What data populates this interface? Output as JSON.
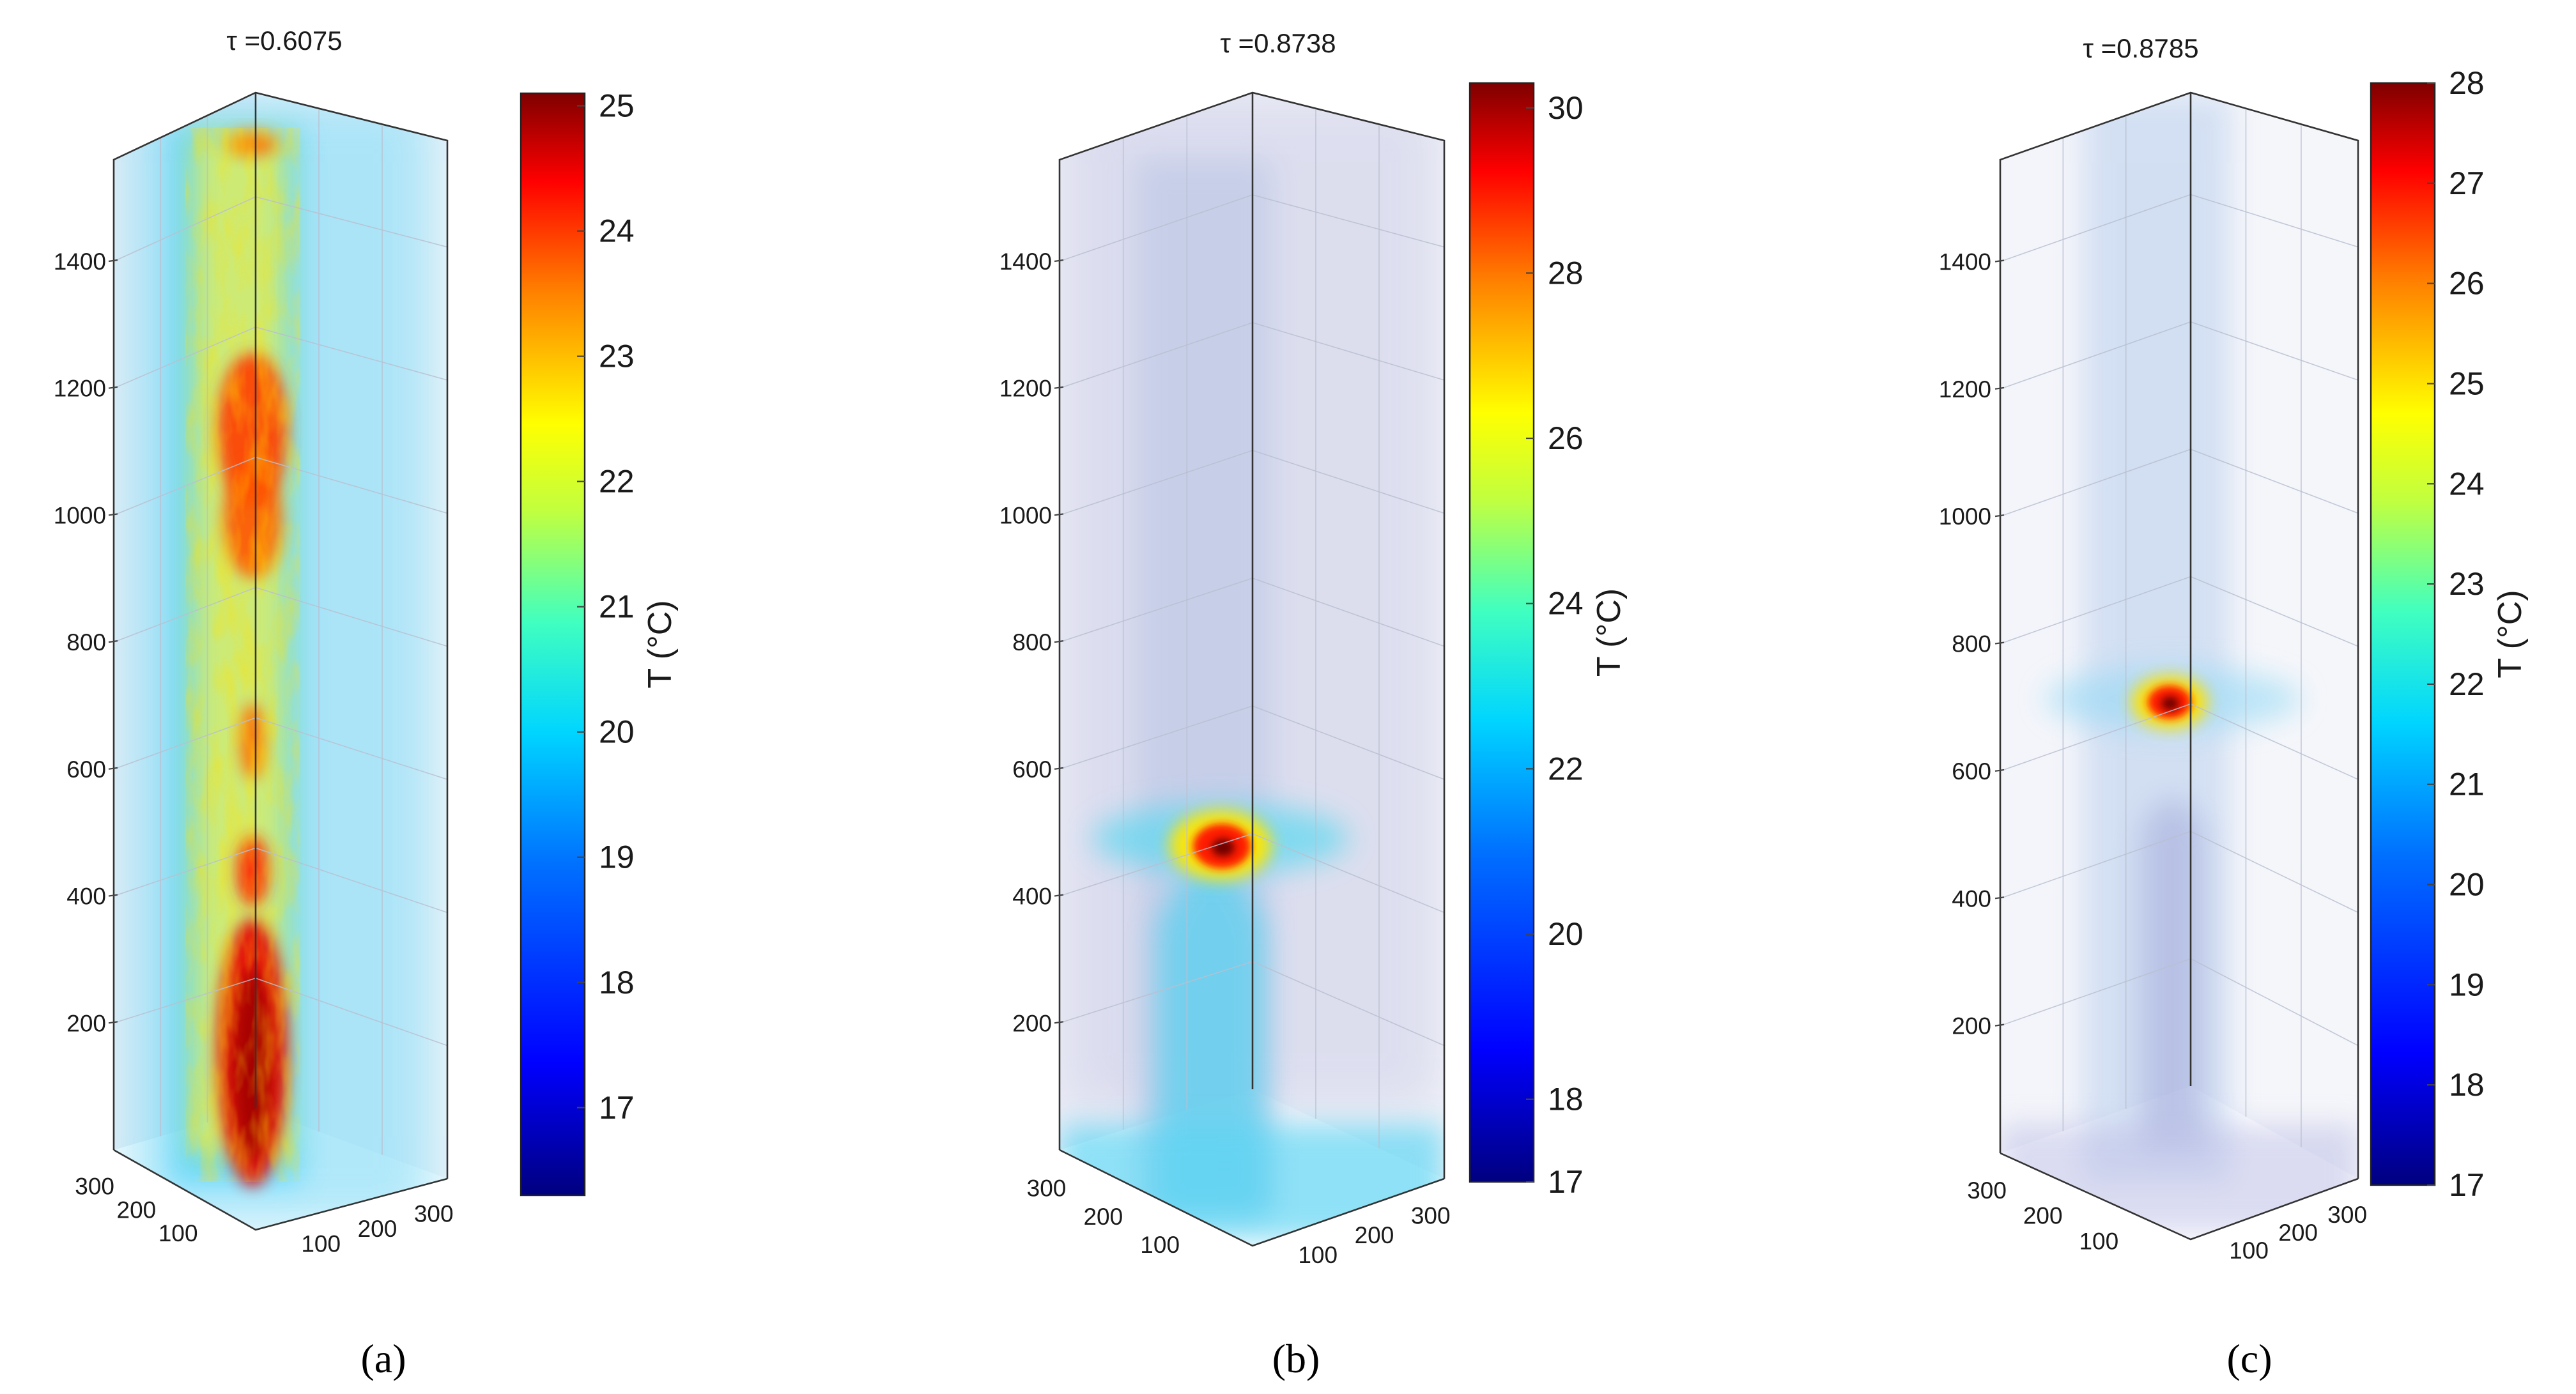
{
  "chart_data": [
    {
      "type": "heatmap",
      "panel_label": "a",
      "caption": "(a)",
      "title": "τ =0.6075",
      "colorbar_label": "T (°C)",
      "colorbar_range": [
        16.3,
        25.1
      ],
      "colorbar_ticks": [
        "17",
        "18",
        "19",
        "20",
        "21",
        "22",
        "23",
        "24",
        "25"
      ],
      "z_axis_ticks": [
        "200",
        "400",
        "600",
        "800",
        "1000",
        "1200",
        "1400"
      ],
      "z_range": [
        0,
        1560
      ],
      "x_axis_ticks": [
        "100",
        "200",
        "300"
      ],
      "y_axis_ticks": [
        "100",
        "200",
        "300"
      ],
      "xy_range": [
        0,
        340
      ],
      "description_points": [
        {
          "z": 100,
          "t": 25.0
        },
        {
          "z": 420,
          "t": 24.0
        },
        {
          "z": 960,
          "t": 24.0
        },
        {
          "z": 1100,
          "t": 24.2
        },
        {
          "z": 1540,
          "t": 23.0
        }
      ]
    },
    {
      "type": "heatmap",
      "panel_label": "b",
      "caption": "(b)",
      "title": "τ =0.8738",
      "colorbar_label": "T (°C)",
      "colorbar_range": [
        17,
        30.3
      ],
      "colorbar_ticks": [
        "18",
        "20",
        "22",
        "24",
        "26",
        "28",
        "30"
      ],
      "extra_ticks": [
        "17"
      ],
      "z_axis_ticks": [
        "200",
        "400",
        "600",
        "800",
        "1000",
        "1200",
        "1400"
      ],
      "z_range": [
        0,
        1560
      ],
      "x_axis_ticks": [
        "100",
        "200",
        "300"
      ],
      "y_axis_ticks": [
        "100",
        "200",
        "300"
      ],
      "xy_range": [
        0,
        340
      ],
      "hotspot": {
        "z": 460,
        "t": 30.0
      }
    },
    {
      "type": "heatmap",
      "panel_label": "c",
      "caption": "(c)",
      "title": "τ =0.8785",
      "colorbar_label": "T (°C)",
      "colorbar_range": [
        17,
        28
      ],
      "colorbar_ticks": [
        "17",
        "18",
        "19",
        "20",
        "21",
        "22",
        "23",
        "24",
        "25",
        "26",
        "27",
        "28"
      ],
      "z_axis_ticks": [
        "200",
        "400",
        "600",
        "800",
        "1000",
        "1200",
        "1400"
      ],
      "z_range": [
        0,
        1560
      ],
      "x_axis_ticks": [
        "100",
        "200",
        "300"
      ],
      "y_axis_ticks": [
        "100",
        "200",
        "300"
      ],
      "xy_range": [
        0,
        340
      ],
      "hotspot": {
        "z": 680,
        "t": 28.0
      }
    }
  ],
  "colors": {
    "jet": [
      "#000080",
      "#0000ff",
      "#0080ff",
      "#00ffff",
      "#80ff80",
      "#ffff00",
      "#ff8000",
      "#ff0000",
      "#800000"
    ]
  }
}
